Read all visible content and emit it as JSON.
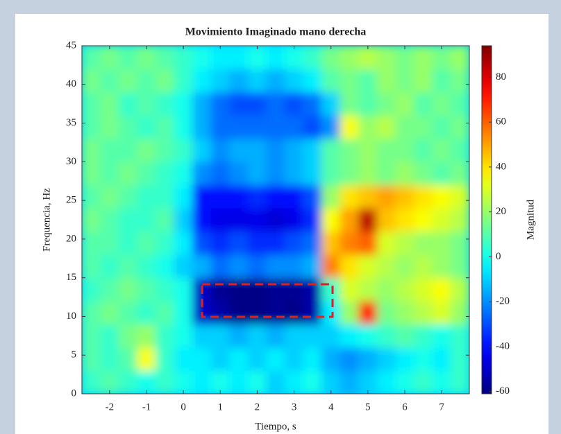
{
  "chart_data": {
    "type": "heatmap",
    "title": "Movimiento Imaginado mano derecha",
    "x_label": "Tiempo, s",
    "y_label": "Frequencia, Hz",
    "colorbar_label": "Magnitud",
    "colormap": "jet",
    "xlim": [
      -2.75,
      7.75
    ],
    "ylim": [
      0,
      45
    ],
    "clim": [
      -61,
      94
    ],
    "xticks": [
      -2,
      -1,
      0,
      1,
      2,
      3,
      4,
      5,
      6,
      7
    ],
    "yticks": [
      0,
      5,
      10,
      15,
      20,
      25,
      30,
      35,
      40,
      45
    ],
    "cticks": [
      -60,
      -40,
      -20,
      0,
      20,
      40,
      60,
      80
    ],
    "x_bins": [
      -2.75,
      -2.25,
      -1.75,
      -1.25,
      -0.75,
      -0.25,
      0.25,
      0.75,
      1.25,
      1.75,
      2.25,
      2.75,
      3.25,
      3.75,
      4.25,
      4.75,
      5.25,
      5.75,
      6.25,
      6.75,
      7.25,
      7.75
    ],
    "y_bins": [
      0,
      3,
      6,
      9,
      12,
      15,
      18,
      21,
      24,
      27,
      30,
      33,
      36,
      39,
      42,
      45
    ],
    "z": [
      [
        5,
        10,
        5,
        0,
        5,
        0,
        -5,
        0,
        -5,
        0,
        -10,
        -5,
        0,
        -10,
        -15,
        -10,
        -5,
        0,
        5,
        0,
        5
      ],
      [
        10,
        5,
        10,
        35,
        5,
        -5,
        -5,
        -10,
        -5,
        -10,
        -5,
        -10,
        -5,
        -15,
        -20,
        -15,
        -10,
        -5,
        0,
        -5,
        5
      ],
      [
        10,
        5,
        15,
        20,
        5,
        0,
        -10,
        -10,
        -15,
        -10,
        -15,
        -10,
        -10,
        -10,
        -5,
        0,
        5,
        10,
        5,
        0,
        5
      ],
      [
        10,
        15,
        10,
        5,
        10,
        0,
        -50,
        -55,
        -60,
        -60,
        -58,
        -60,
        -55,
        -5,
        20,
        70,
        15,
        20,
        25,
        30,
        20
      ],
      [
        5,
        10,
        15,
        10,
        5,
        0,
        -50,
        -58,
        -60,
        -60,
        -58,
        -58,
        -55,
        5,
        30,
        25,
        20,
        25,
        30,
        35,
        25
      ],
      [
        10,
        5,
        10,
        5,
        0,
        -10,
        -15,
        -25,
        -20,
        -25,
        -20,
        -20,
        -15,
        55,
        40,
        30,
        25,
        20,
        25,
        20,
        15
      ],
      [
        10,
        10,
        5,
        10,
        5,
        -5,
        -30,
        -35,
        -30,
        -35,
        -35,
        -30,
        -25,
        45,
        55,
        60,
        30,
        25,
        20,
        20,
        15
      ],
      [
        15,
        10,
        5,
        5,
        10,
        -10,
        -40,
        -45,
        -45,
        -45,
        -48,
        -45,
        -35,
        35,
        50,
        85,
        45,
        40,
        35,
        30,
        25
      ],
      [
        10,
        15,
        10,
        5,
        5,
        -5,
        -40,
        -40,
        -40,
        -35,
        -40,
        -40,
        -30,
        20,
        40,
        45,
        50,
        45,
        40,
        35,
        30
      ],
      [
        15,
        10,
        15,
        10,
        5,
        0,
        -20,
        -25,
        -20,
        -15,
        -20,
        -15,
        -10,
        10,
        15,
        20,
        15,
        20,
        15,
        10,
        15
      ],
      [
        15,
        10,
        10,
        15,
        10,
        5,
        -10,
        -20,
        -15,
        -15,
        -20,
        -15,
        -10,
        10,
        15,
        20,
        15,
        15,
        10,
        15,
        10
      ],
      [
        10,
        15,
        10,
        5,
        10,
        0,
        -15,
        -25,
        -25,
        -25,
        -25,
        -25,
        -30,
        -20,
        35,
        20,
        25,
        15,
        15,
        10,
        15
      ],
      [
        10,
        15,
        5,
        10,
        5,
        0,
        -15,
        -25,
        -30,
        -30,
        -25,
        -30,
        -25,
        -10,
        15,
        10,
        15,
        20,
        10,
        15,
        10
      ],
      [
        15,
        10,
        15,
        10,
        15,
        5,
        -5,
        -10,
        -15,
        -10,
        -15,
        -10,
        -5,
        10,
        15,
        10,
        20,
        15,
        20,
        10,
        15
      ],
      [
        10,
        15,
        10,
        15,
        10,
        5,
        0,
        -5,
        -5,
        0,
        -5,
        0,
        5,
        15,
        20,
        25,
        20,
        15,
        20,
        15,
        20
      ]
    ]
  }
}
